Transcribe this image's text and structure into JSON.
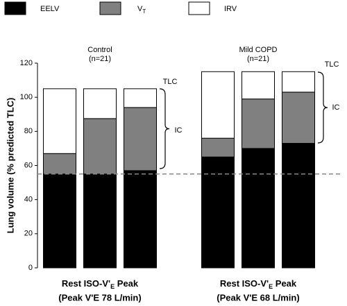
{
  "chart_data": {
    "type": "stacked-bar",
    "y_label": "Lung volume (% predicted TLC)",
    "ylim": [
      0,
      120
    ],
    "yticks": [
      0,
      20,
      40,
      60,
      80,
      100,
      120
    ],
    "reference_line": 55,
    "groups": [
      {
        "title": [
          "Control",
          "(n=21)"
        ],
        "label": [
          "Rest ISO-V'",
          "E",
          " Peak"
        ],
        "note": "(Peak V'E 78 L/min)"
      },
      {
        "title": [
          "Mild COPD",
          "(n=21)"
        ],
        "label": [
          "Rest ISO-V'",
          "E",
          " Peak"
        ],
        "note": "(Peak V'E 68 L/min)"
      }
    ],
    "series": [
      {
        "name": "EELV",
        "color": "#000000",
        "values": [
          55,
          55,
          57,
          65,
          70,
          73
        ]
      },
      {
        "name": "V",
        "subscript": "T",
        "color": "#808080",
        "values": [
          12,
          32.5,
          37,
          11,
          29,
          30
        ]
      },
      {
        "name": "IRV",
        "color": "#ffffff",
        "values": [
          38,
          17.5,
          11,
          39,
          16,
          12
        ]
      }
    ],
    "annotations": [
      "TLC",
      "IC",
      "TLC",
      "IC"
    ]
  }
}
